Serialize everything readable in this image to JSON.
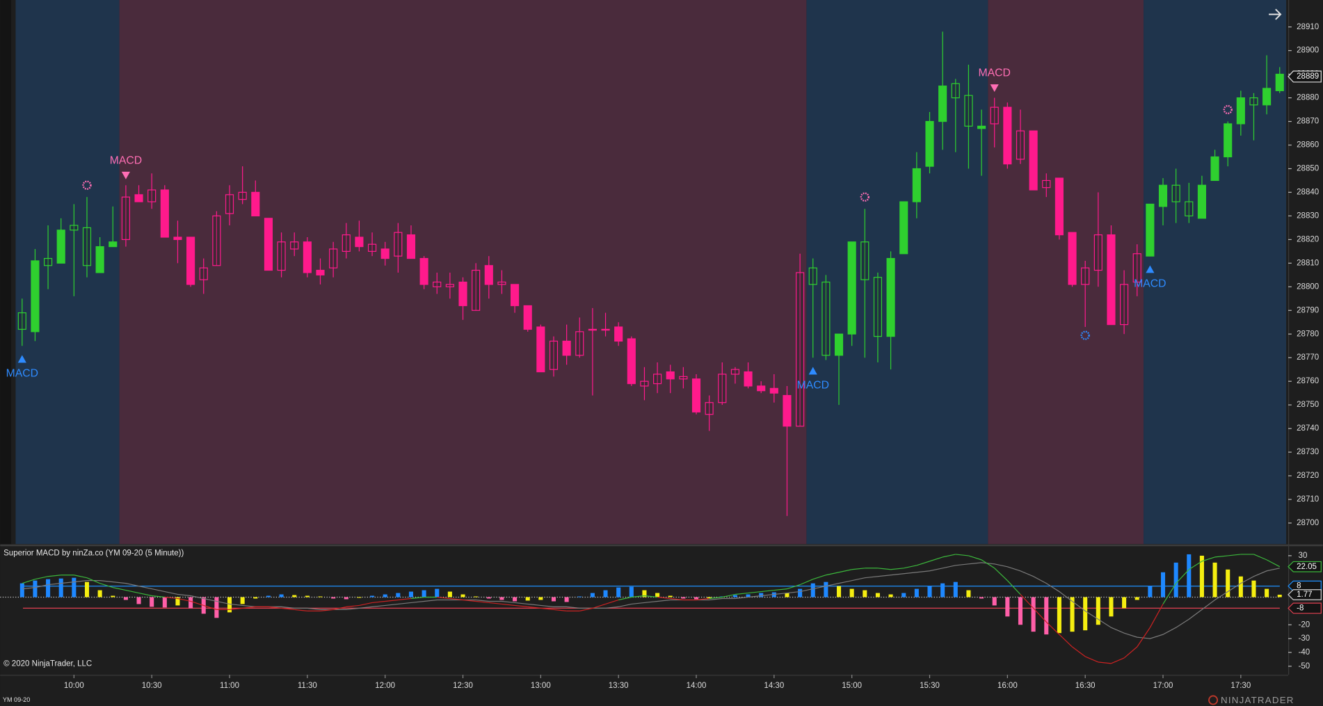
{
  "instrument": "YM 09-20",
  "copyright": "© 2020 NinjaTrader, LLC",
  "logo": "NINJATRADER",
  "chart_data": [
    {
      "type": "candlestick",
      "categories": [
        null,
        null,
        null,
        null,
        "10:00",
        null,
        null,
        null,
        null,
        null,
        "10:30",
        null,
        null,
        null,
        null,
        null,
        "11:00",
        null,
        null,
        null,
        null,
        null,
        "11:30",
        null,
        null,
        null,
        null,
        null,
        "12:00",
        null,
        null,
        null,
        null,
        null,
        "12:30",
        null,
        null,
        null,
        null,
        null,
        "13:00",
        null,
        null,
        null,
        null,
        null,
        "13:30",
        null,
        null,
        null,
        null,
        null,
        "14:00",
        null,
        null,
        null,
        null,
        null,
        "14:30",
        null,
        null,
        null,
        null,
        null,
        "15:00",
        null,
        null,
        null,
        null,
        null,
        "15:30",
        null,
        null,
        null,
        null,
        null,
        "16:00",
        null,
        null,
        null,
        null,
        null,
        "16:30",
        null,
        null,
        null,
        null,
        null,
        "17:00",
        null,
        null,
        null,
        null,
        null,
        "17:30",
        null,
        null,
        null
      ],
      "open": [
        28782,
        28811,
        28809,
        28824,
        28824,
        28809,
        28817,
        28819,
        28820,
        28839,
        28836,
        28841,
        28821,
        28821,
        28803,
        28809,
        28831,
        28837,
        28840,
        28829,
        28807,
        28816,
        28819,
        28807,
        28808,
        28815,
        28821,
        28815,
        28816,
        28813,
        28822,
        28812,
        28800,
        28800,
        28802,
        28790,
        28809,
        28801,
        28801,
        28792,
        28783,
        28765,
        28777,
        28771,
        28782,
        28782,
        28783,
        28778,
        28758,
        28759,
        28764,
        28761,
        28761,
        28746,
        28751,
        28763,
        28764,
        28758,
        28757,
        28754,
        28741,
        28801,
        28771,
        28780,
        28819,
        28803,
        28779,
        28812,
        28836,
        28850,
        28870,
        28885,
        28880,
        28868,
        28868,
        28869,
        28876,
        28854,
        28866,
        28842,
        28846,
        28823,
        28801,
        28807,
        28822,
        28784,
        28802,
        28835,
        28843,
        28836,
        28830,
        28843,
        28855,
        28869,
        28880,
        28877,
        28884,
        28890
      ],
      "high": [
        28795,
        28816,
        28826,
        28829,
        28835,
        28838,
        28821,
        28834,
        28843,
        28843,
        28848,
        28843,
        28828,
        28821,
        28812,
        28832,
        28843,
        28851,
        28845,
        28829,
        28823,
        28823,
        28821,
        28812,
        28819,
        28827,
        28828,
        28823,
        28819,
        28827,
        28826,
        28813,
        28806,
        28806,
        28804,
        28810,
        28813,
        28807,
        28801,
        28792,
        28784,
        28779,
        28784,
        28787,
        28791,
        28789,
        28785,
        28779,
        28766,
        28768,
        28767,
        28766,
        28763,
        28754,
        28768,
        28766,
        28768,
        28760,
        28763,
        28758,
        28814,
        28812,
        28805,
        28780,
        28819,
        28833,
        28806,
        28815,
        28836,
        28857,
        28874,
        28908,
        28888,
        28894,
        28875,
        28880,
        28878,
        28875,
        28866,
        28848,
        28846,
        28823,
        28811,
        28840,
        28826,
        28807,
        28818,
        28835,
        28846,
        28850,
        28844,
        28847,
        28858,
        28870,
        28883,
        28882,
        28898,
        28893
      ],
      "low": [
        28775,
        28777,
        28799,
        28810,
        28796,
        28804,
        28806,
        28817,
        28817,
        28836,
        28833,
        28821,
        28810,
        28800,
        28797,
        28809,
        28826,
        28835,
        28830,
        28807,
        28804,
        28813,
        28804,
        28801,
        28804,
        28812,
        28815,
        28813,
        28809,
        28806,
        28812,
        28799,
        28797,
        28795,
        28786,
        28790,
        28795,
        28797,
        28789,
        28781,
        28764,
        28762,
        28767,
        28770,
        28754,
        28779,
        28775,
        28758,
        28752,
        28755,
        28755,
        28757,
        28746,
        28739,
        28750,
        28759,
        28757,
        28755,
        28751,
        28703,
        28741,
        28770,
        28769,
        28750,
        28775,
        28770,
        28768,
        28765,
        28814,
        28829,
        28848,
        28858,
        28857,
        28850,
        28847,
        28859,
        28850,
        28852,
        28841,
        28838,
        28820,
        28800,
        28783,
        28800,
        28784,
        28780,
        28796,
        28813,
        28826,
        28827,
        28827,
        28829,
        28845,
        28851,
        28864,
        28862,
        28873,
        28882
      ],
      "close": [
        28789,
        28781,
        28812,
        28810,
        28826,
        28825,
        28806,
        28817,
        28838,
        28836,
        28841,
        28821,
        28820,
        28801,
        28808,
        28830,
        28839,
        28840,
        28830,
        28807,
        28819,
        28819,
        28806,
        28805,
        28816,
        28822,
        28817,
        28818,
        28812,
        28823,
        28812,
        28801,
        28802,
        28801,
        28792,
        28807,
        28801,
        28802,
        28792,
        28782,
        28764,
        28777,
        28771,
        28781,
        28782,
        28782,
        28777,
        28759,
        28760,
        28763,
        28761,
        28762,
        28747,
        28751,
        28763,
        28765,
        28758,
        28756,
        28755,
        28741,
        28806,
        28808,
        28802,
        28771,
        28780,
        28819,
        28804,
        28779,
        28814,
        28836,
        28851,
        28870,
        28886,
        28881,
        28867,
        28876,
        28852,
        28866,
        28841,
        28845,
        28822,
        28801,
        28808,
        28822,
        28784,
        28801,
        28814,
        28813,
        28834,
        28843,
        28836,
        28829,
        28845,
        28855,
        28869,
        28880,
        28877,
        28883
      ],
      "ylim": [
        28691.1,
        28921.4
      ],
      "yticks": [
        28700,
        28710,
        28720,
        28730,
        28740,
        28750,
        28760,
        28770,
        28780,
        28790,
        28800,
        28810,
        28820,
        28830,
        28840,
        28850,
        28860,
        28870,
        28880,
        28890,
        28900,
        28910
      ],
      "last_price": 28889,
      "up_color": "#2fd02f",
      "down_color": "#ff1a8c",
      "zone_colors": {
        "up": "#1f344c",
        "down": "#4a2b3c"
      },
      "regimes": [
        {
          "start": 0,
          "end": 7,
          "trend": "up"
        },
        {
          "start": 8,
          "end": 60,
          "trend": "down"
        },
        {
          "start": 61,
          "end": 74,
          "trend": "up"
        },
        {
          "start": 75,
          "end": 86,
          "trend": "down"
        },
        {
          "start": 87,
          "end": 97,
          "trend": "up"
        }
      ],
      "signal_colors": {
        "up": "#2e8bff",
        "down": "#ff6eb4"
      },
      "signals": [
        {
          "index": 0,
          "direction": "up",
          "label": "MACD"
        },
        {
          "index": 8,
          "direction": "down",
          "label": "MACD"
        },
        {
          "index": 61,
          "direction": "up",
          "label": "MACD"
        },
        {
          "index": 75,
          "direction": "down",
          "label": "MACD"
        },
        {
          "index": 87,
          "direction": "up",
          "label": "MACD"
        }
      ],
      "markers": [
        {
          "index": 5,
          "direction": "down"
        },
        {
          "index": 65,
          "direction": "down"
        },
        {
          "index": 82,
          "direction": "up"
        },
        {
          "index": 93,
          "direction": "down"
        }
      ]
    },
    {
      "type": "macd",
      "title": "Superior MACD by ninZa.co (YM 09-20 (5 Minute))",
      "ylim": [
        -56.2,
        36.6
      ],
      "yticks": [
        30,
        -20,
        -30,
        -40,
        -50
      ],
      "zero_line": true,
      "levels": [
        {
          "value": 8,
          "color": "#1e90ff"
        },
        {
          "value": -8,
          "color": "#e04050"
        }
      ],
      "macd": {
        "color_positive": "#3cb83c",
        "color_negative": "#cc2222",
        "values": [
          10,
          13,
          15,
          16,
          16,
          14,
          10,
          7,
          5,
          3,
          1,
          0,
          -1,
          -3,
          -6,
          -9,
          -9,
          -8,
          -7,
          -7,
          -8,
          -9,
          -10,
          -10,
          -9,
          -7,
          -6,
          -4,
          -3,
          -2,
          -1,
          0,
          0,
          -1,
          -2,
          -3,
          -4,
          -5,
          -6,
          -7,
          -8,
          -9,
          -10,
          -10,
          -8,
          -5,
          -2,
          0,
          1,
          0,
          -1,
          -2,
          -2,
          -1,
          0,
          2,
          3,
          4,
          5,
          6,
          9,
          13,
          16,
          18,
          20,
          21,
          21,
          20,
          21,
          23,
          26,
          29,
          31,
          30,
          27,
          21,
          12,
          2,
          -8,
          -18,
          -27,
          -36,
          -43,
          -47,
          -48,
          -44,
          -36,
          -22,
          -5,
          10,
          20,
          26,
          29,
          30,
          31,
          31,
          27,
          22.05
        ]
      },
      "signal": {
        "color": "#7a7a7a",
        "values": [
          6,
          7,
          9,
          10,
          11,
          12,
          12,
          11,
          10,
          8,
          6,
          4,
          2,
          1,
          -1,
          -3,
          -5,
          -6,
          -7,
          -7,
          -7,
          -8,
          -8,
          -9,
          -9,
          -9,
          -8,
          -7,
          -6,
          -5,
          -4,
          -3,
          -2,
          -2,
          -2,
          -2,
          -3,
          -3,
          -4,
          -5,
          -6,
          -7,
          -7,
          -8,
          -8,
          -8,
          -7,
          -5,
          -4,
          -3,
          -2,
          -2,
          -2,
          -2,
          -1,
          -1,
          0,
          1,
          2,
          3,
          4,
          6,
          8,
          10,
          12,
          14,
          15,
          16,
          17,
          18,
          19,
          21,
          23,
          24,
          25,
          24,
          22,
          19,
          15,
          10,
          4,
          -3,
          -10,
          -16,
          -22,
          -26,
          -29,
          -30,
          -27,
          -22,
          -16,
          -9,
          -2,
          4,
          10,
          15,
          19,
          21
        ]
      },
      "histogram": {
        "colors": {
          "positive_rising": "#1e88ff",
          "positive_falling": "#f5ee10",
          "negative_falling": "#ff5fa8",
          "negative_rising": "#f5ee10"
        },
        "values": [
          10,
          12,
          13,
          13.5,
          14,
          11,
          5,
          1,
          -2,
          -5,
          -7,
          -7.5,
          -6,
          -8,
          -12,
          -15,
          -11,
          -5,
          -1,
          1,
          2,
          1.5,
          1,
          0.5,
          -1,
          -1.5,
          -0.5,
          1,
          2,
          3,
          4,
          5,
          6,
          4,
          2,
          0.5,
          -1,
          -2,
          -3,
          -2.5,
          -2,
          -3,
          -3.5,
          0.5,
          3,
          5,
          7,
          7.5,
          5,
          3,
          1,
          -1,
          -1.5,
          -1,
          0.5,
          1.5,
          2,
          3,
          3.5,
          3,
          6,
          10,
          11,
          8,
          6,
          5,
          3,
          2,
          3,
          6,
          8,
          10,
          11,
          5,
          -1,
          -6,
          -14,
          -20,
          -25,
          -27,
          -26,
          -25,
          -24,
          -20,
          -14,
          -8,
          -2,
          8,
          18,
          25,
          31,
          30,
          25,
          20,
          15,
          12,
          6,
          1.77
        ]
      }
    }
  ]
}
